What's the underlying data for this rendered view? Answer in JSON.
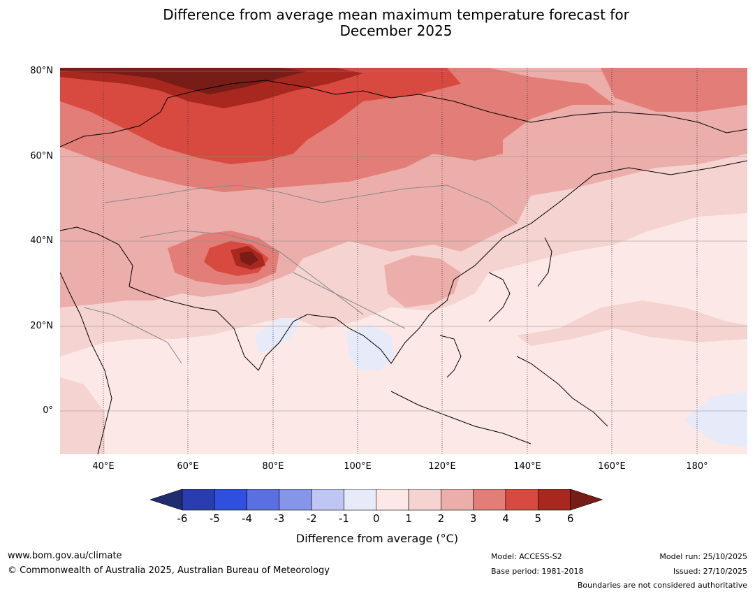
{
  "title": {
    "line1": "Difference from average mean maximum temperature forecast for",
    "line2": "December 2025"
  },
  "map": {
    "lat_labels": [
      "80°N",
      "60°N",
      "40°N",
      "20°N",
      "0°"
    ],
    "lon_labels": [
      "40°E",
      "60°E",
      "80°E",
      "100°E",
      "120°E",
      "140°E",
      "160°E",
      "180°"
    ]
  },
  "colorbar": {
    "ticks": [
      "-6",
      "-5",
      "-4",
      "-3",
      "-2",
      "-1",
      "0",
      "1",
      "2",
      "3",
      "4",
      "5",
      "6"
    ],
    "label": "Difference from average (°C)",
    "colors": [
      "#1f2d6e",
      "#2a3db0",
      "#2f4fe0",
      "#5a6fe2",
      "#8595e8",
      "#bfc6f3",
      "#e6eaf9",
      "#fce9e7",
      "#f5d3d0",
      "#ecaeaa",
      "#e27e77",
      "#d84a3f",
      "#a8281f",
      "#781c17"
    ]
  },
  "footer": {
    "website": "www.bom.gov.au/climate",
    "copyright": "© Commonwealth of Australia 2025, Australian Bureau of Meteorology",
    "model": "Model: ACCESS-S2",
    "base_period": "Base period: 1981-2018",
    "model_run": "Model run: 25/10/2025",
    "issued": "Issued: 27/10/2025",
    "disclaimer": "Boundaries are not considered authoritative"
  }
}
